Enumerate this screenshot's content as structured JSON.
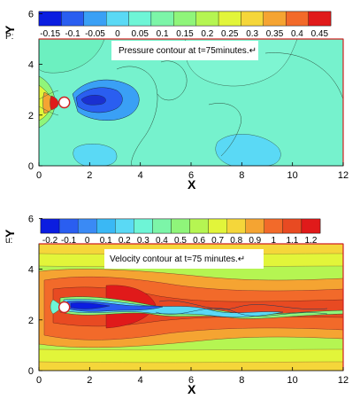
{
  "chart_data": [
    {
      "type": "contour",
      "xlabel": "X",
      "ylabel": "Y",
      "xlim": [
        0,
        12
      ],
      "ylim": [
        0,
        6
      ],
      "xticks": [
        "0",
        "2",
        "4",
        "6",
        "8",
        "10",
        "12"
      ],
      "yticks": [
        "0",
        "2",
        "4",
        "6"
      ],
      "legend": {
        "variable": "P:",
        "levels": [
          "-0.15",
          "-0.1",
          "-0.05",
          "0",
          "0.05",
          "0.1",
          "0.15",
          "0.2",
          "0.25",
          "0.3",
          "0.35",
          "0.4",
          "0.45"
        ],
        "colors": [
          "#0b1de0",
          "#2a5ef0",
          "#3aa0f5",
          "#5ad9f5",
          "#6ef5d6",
          "#7cf5a8",
          "#8ff57a",
          "#b5f552",
          "#e2f53a",
          "#f5d63a",
          "#f5a432",
          "#f26a2a",
          "#e01a1a"
        ]
      },
      "annotation": "Pressure contour at t=75minutes.↵",
      "obstacle": {
        "x": 1,
        "y": 2.5
      }
    },
    {
      "type": "contour",
      "xlabel": "X",
      "ylabel": "Y",
      "xlim": [
        0,
        12
      ],
      "ylim": [
        0,
        6
      ],
      "xticks": [
        "0",
        "2",
        "4",
        "6",
        "8",
        "10",
        "12"
      ],
      "yticks": [
        "0",
        "2",
        "4",
        "6"
      ],
      "legend": {
        "variable": "u:",
        "levels": [
          "-0.2",
          "-0.1",
          "0",
          "0.1",
          "0.2",
          "0.3",
          "0.4",
          "0.5",
          "0.6",
          "0.7",
          "0.8",
          "0.9",
          "1",
          "1.1",
          "1.2"
        ],
        "colors": [
          "#0b1de0",
          "#2a5ef0",
          "#3a8af5",
          "#3ab8f5",
          "#5ad9f5",
          "#6ef5d6",
          "#7cf5a8",
          "#8ff57a",
          "#b5f552",
          "#e2f53a",
          "#f5d63a",
          "#f5a432",
          "#f26a2a",
          "#e84a22",
          "#e01a1a"
        ]
      },
      "annotation": "Velocity contour at t=75 minutes.↵",
      "obstacle": {
        "x": 1,
        "y": 2.5
      }
    }
  ]
}
